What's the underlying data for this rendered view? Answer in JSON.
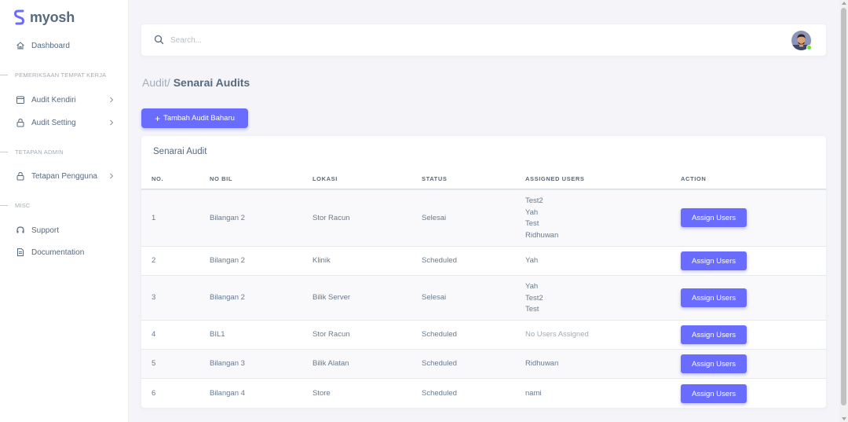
{
  "brand": {
    "name": "myosh",
    "accent": "#696cff"
  },
  "sidebar": {
    "dashboard": "Dashboard",
    "section_pemeriksaan": "PEMERIKSAAN TEMPAT KERJA",
    "audit_kendiri": "Audit Kendiri",
    "audit_setting": "Audit Setting",
    "section_tetapan": "TETAPAN ADMIN",
    "tetapan_pengguna": "Tetapan Pengguna",
    "section_misc": "MISC",
    "support": "Support",
    "documentation": "Documentation"
  },
  "navbar": {
    "search_placeholder": "Search...",
    "avatar_status": "online"
  },
  "page": {
    "breadcrumb": "Audit/",
    "title": "Senarai Audits"
  },
  "add_button": "Tambah Audit Baharu",
  "table": {
    "title": "Senarai Audit",
    "headers": [
      "NO.",
      "NO BIL",
      "LOKASI",
      "STATUS",
      "ASSIGNED USERS",
      "ACTION"
    ],
    "rows": [
      {
        "no": "1",
        "bil": "Bilangan 2",
        "lokasi": "Stor Racun",
        "status": "Selesai",
        "users": [
          "Test2",
          "Yah",
          "Test",
          "Ridhuwan"
        ],
        "action": "Assign Users"
      },
      {
        "no": "2",
        "bil": "Bilangan 2",
        "lokasi": "Klinik",
        "status": "Scheduled",
        "users": [
          "Yah"
        ],
        "action": "Assign Users"
      },
      {
        "no": "3",
        "bil": "Bilangan 2",
        "lokasi": "Bilik Server",
        "status": "Selesai",
        "users": [
          "Yah",
          "Test2",
          "Test"
        ],
        "action": "Assign Users"
      },
      {
        "no": "4",
        "bil": "BIL1",
        "lokasi": "Stor Racun",
        "status": "Scheduled",
        "users": [],
        "no_users_text": "No Users Assigned",
        "action": "Assign Users"
      },
      {
        "no": "5",
        "bil": "Bilangan 3",
        "lokasi": "Bilik Alatan",
        "status": "Scheduled",
        "users": [
          "Ridhuwan"
        ],
        "action": "Assign Users"
      },
      {
        "no": "6",
        "bil": "Bilangan 4",
        "lokasi": "Store",
        "status": "Scheduled",
        "users": [
          "nami"
        ],
        "action": "Assign Users"
      }
    ]
  }
}
